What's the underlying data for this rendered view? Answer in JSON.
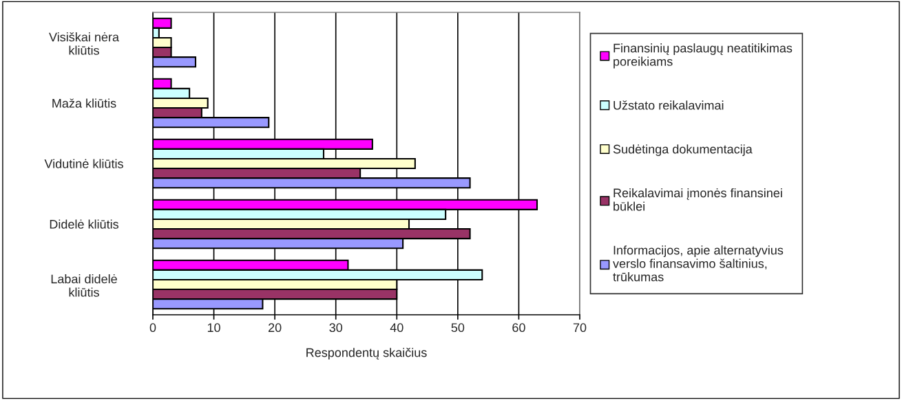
{
  "chart_data": {
    "type": "bar",
    "orientation": "horizontal",
    "xlabel": "Respondentų skaičius",
    "categories": [
      "Visiškai nėra kliūtis",
      "Maža kliūtis",
      "Vidutinė kliūtis",
      "Didelė kliūtis",
      "Labai didelė kliūtis"
    ],
    "series": [
      {
        "name": "Finansinių paslaugų neatitikimas poreikiams",
        "color": "#ff00ff",
        "values": [
          3,
          3,
          36,
          63,
          32
        ]
      },
      {
        "name": "Užstato reikalavimai",
        "color": "#ccffff",
        "values": [
          1,
          6,
          28,
          48,
          54
        ]
      },
      {
        "name": "Sudėtinga dokumentacija",
        "color": "#ffffcc",
        "values": [
          3,
          9,
          43,
          42,
          40
        ]
      },
      {
        "name": "Reikalavimai įmonės finansinei būklei",
        "color": "#993366",
        "values": [
          3,
          8,
          34,
          52,
          40
        ]
      },
      {
        "name": "Informacijos, apie alternatyvius verslo finansavimo šaltinius, trūkumas",
        "color": "#9999ff",
        "values": [
          7,
          19,
          52,
          41,
          18
        ]
      }
    ],
    "xlim": [
      0,
      70
    ],
    "xticks": [
      0,
      10,
      20,
      30,
      40,
      50,
      60,
      70
    ],
    "grid": "x",
    "legend": "right"
  }
}
